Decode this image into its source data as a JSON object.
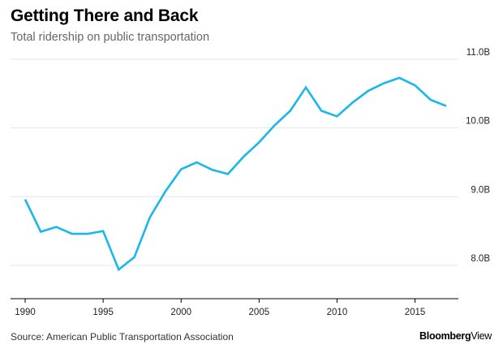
{
  "header": {
    "title": "Getting There and Back",
    "subtitle": "Total ridership on public transportation"
  },
  "footer": {
    "source": "Source: American Public Transportation Association",
    "brand_bold": "Bloomberg",
    "brand_light": "View"
  },
  "colors": {
    "line": "#1ab7ea",
    "grid": "#e6e6e6",
    "axis": "#000000"
  },
  "chart_data": {
    "type": "line",
    "title": "Getting There and Back",
    "subtitle": "Total ridership on public transportation",
    "xlabel": "",
    "ylabel": "",
    "xlim": [
      1989.5,
      2017.8
    ],
    "ylim": [
      7.6,
      11.0
    ],
    "grid": true,
    "y_axis_side": "right",
    "x_ticks": [
      1990,
      1995,
      2000,
      2005,
      2010,
      2015
    ],
    "x_tick_labels": [
      "1990",
      "1995",
      "2000",
      "2005",
      "2010",
      "2015"
    ],
    "y_ticks": [
      8.0,
      9.0,
      10.0,
      11.0
    ],
    "y_tick_labels": [
      "8.0B",
      "9.0B",
      "10.0B",
      "11.0B"
    ],
    "series": [
      {
        "x": [
          1990,
          1991,
          1992,
          1993,
          1994,
          1995,
          1996,
          1997,
          1998,
          1999,
          2000,
          2001,
          2002,
          2003,
          2004,
          2005,
          2006,
          2007,
          2008,
          2009,
          2010,
          2011,
          2012,
          2013,
          2014,
          2015,
          2016,
          2017
        ],
        "values": [
          8.96,
          8.49,
          8.56,
          8.46,
          8.46,
          8.5,
          7.94,
          8.12,
          8.7,
          9.08,
          9.4,
          9.5,
          9.39,
          9.33,
          9.58,
          9.79,
          10.04,
          10.25,
          10.59,
          10.25,
          10.17,
          10.37,
          10.54,
          10.65,
          10.73,
          10.62,
          10.41,
          10.32
        ]
      }
    ]
  }
}
